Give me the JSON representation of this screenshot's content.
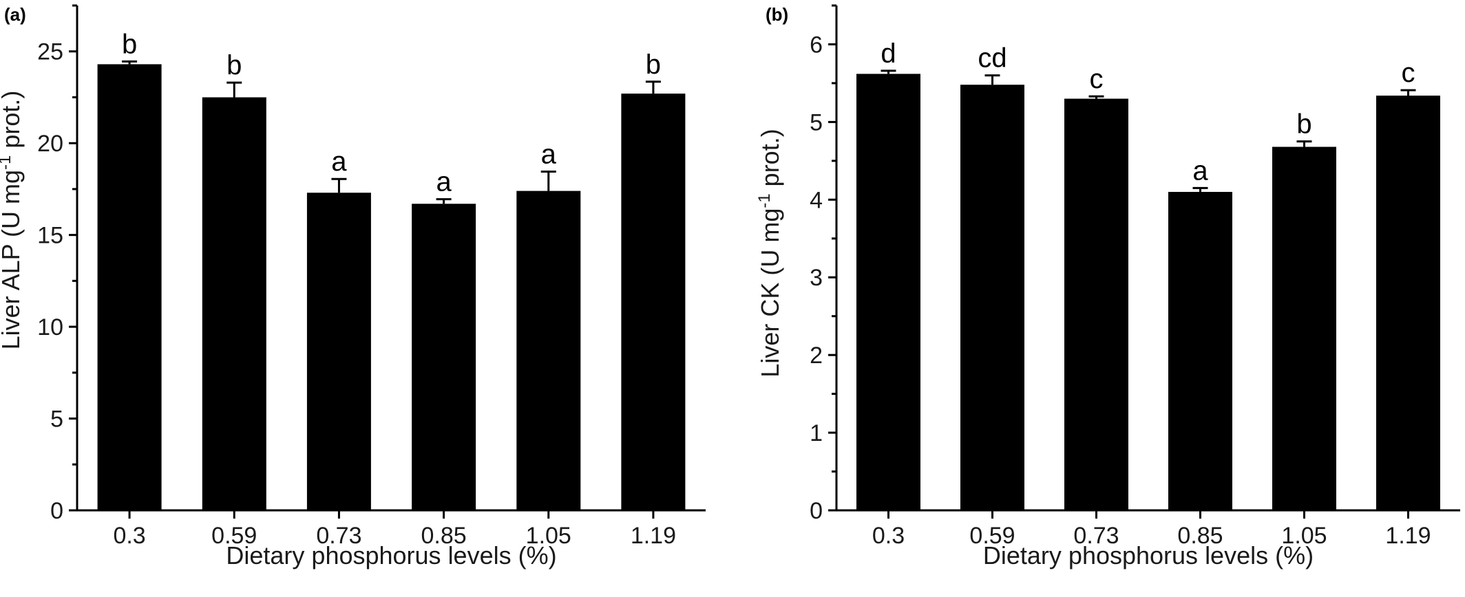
{
  "chart_data": [
    {
      "type": "bar",
      "panel_label": "(a)",
      "categories": [
        "0.3",
        "0.59",
        "0.73",
        "0.85",
        "1.05",
        "1.19"
      ],
      "values": [
        24.3,
        22.5,
        17.3,
        16.7,
        17.4,
        22.7
      ],
      "errors": [
        0.15,
        0.8,
        0.75,
        0.25,
        1.05,
        0.65
      ],
      "significance": [
        "b",
        "b",
        "a",
        "a",
        "a",
        "b"
      ],
      "xlabel": "Dietary phosphorus levels (%)",
      "ylabel_pre": "Liver ALP (U mg",
      "ylabel_sup": "-1",
      "ylabel_post": " prot.)",
      "ylim": [
        0,
        27.5
      ],
      "yticks": [
        0,
        5,
        10,
        15,
        20,
        25
      ],
      "bar_color": "#000000",
      "grid": false
    },
    {
      "type": "bar",
      "panel_label": "(b)",
      "categories": [
        "0.3",
        "0.59",
        "0.73",
        "0.85",
        "1.05",
        "1.19"
      ],
      "values": [
        5.62,
        5.48,
        5.3,
        4.1,
        4.68,
        5.34
      ],
      "errors": [
        0.04,
        0.12,
        0.03,
        0.05,
        0.07,
        0.07
      ],
      "significance": [
        "d",
        "cd",
        "c",
        "a",
        "b",
        "c"
      ],
      "xlabel": "Dietary phosphorus levels (%)",
      "ylabel_pre": "Liver CK (U mg",
      "ylabel_sup": "-1",
      "ylabel_post": " prot.)",
      "ylim": [
        0,
        6.5
      ],
      "yticks": [
        0,
        1,
        2,
        3,
        4,
        5,
        6
      ],
      "bar_color": "#000000",
      "grid": false
    }
  ]
}
